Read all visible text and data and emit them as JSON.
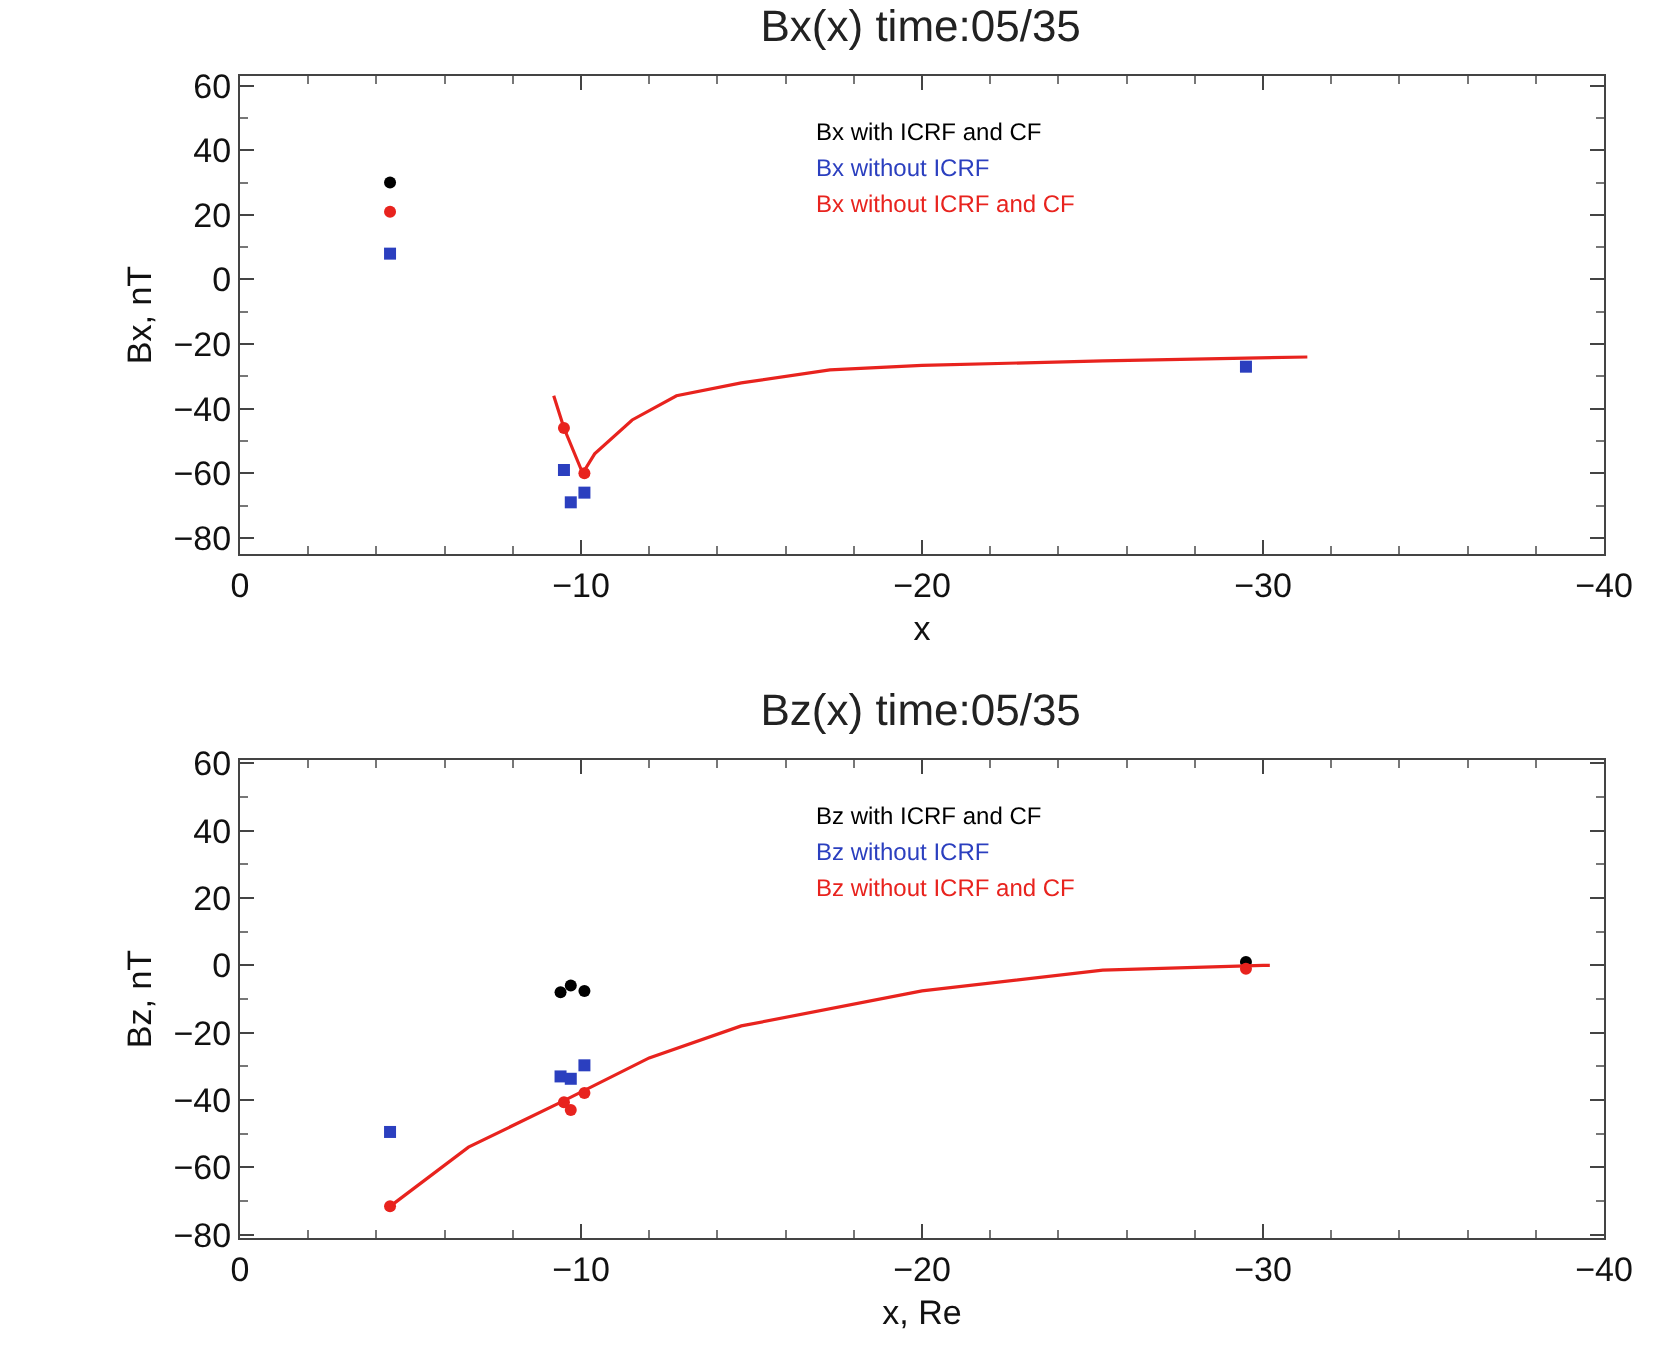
{
  "chart_data": [
    {
      "type": "scatter",
      "title": "Bx(x) time:05/35",
      "xlabel": "x",
      "ylabel": "Bx, nT",
      "xlim": [
        0,
        -40
      ],
      "xticks": [
        0,
        -10,
        -20,
        -30,
        -40
      ],
      "ylim": [
        -85,
        63
      ],
      "yticks": [
        -80,
        -60,
        -40,
        -20,
        0,
        20,
        40,
        60
      ],
      "grid": false,
      "legend": "top",
      "series": [
        {
          "name": "Bx with ICRF and CF",
          "color": "#000000",
          "marker": "circle",
          "x": [
            -4.4
          ],
          "values": [
            30
          ]
        },
        {
          "name": "Bx without ICRF",
          "color": "#2b3fbf",
          "marker": "square",
          "x": [
            -4.4,
            -9.5,
            -9.7,
            -10.1,
            -29.5
          ],
          "values": [
            8,
            -59,
            -69,
            -66,
            -27
          ]
        },
        {
          "color": "#e8231e",
          "marker": "circle",
          "x": [
            -4.4,
            -9.5,
            -10.1
          ],
          "values": [
            21,
            -46,
            -60
          ]
        },
        {
          "name": "Bx without ICRF and CF",
          "type": "line",
          "color": "#e8231e",
          "marker": "none",
          "x": [
            -9.2,
            -9.5,
            -10.05,
            -10.4,
            -11.5,
            -12.8,
            -14.7,
            -17.3,
            -20,
            -25.3,
            -31.3
          ],
          "values": [
            -36,
            -46,
            -60,
            -54,
            -43.5,
            -36,
            -32,
            -28,
            -26.6,
            -25.2,
            -24
          ]
        }
      ]
    },
    {
      "type": "scatter",
      "title": "Bz(x) time:05/35",
      "xlabel": "x, Re",
      "ylabel": "Bz, nT",
      "xlim": [
        0,
        -40
      ],
      "xticks": [
        0,
        -10,
        -20,
        -30,
        -40
      ],
      "ylim": [
        -81,
        61
      ],
      "yticks": [
        -80,
        -60,
        -40,
        -20,
        0,
        20,
        40,
        60
      ],
      "grid": false,
      "legend": "top",
      "series": [
        {
          "name": "Bz with ICRF and CF",
          "color": "#000000",
          "marker": "circle",
          "x": [
            -9.4,
            -9.7,
            -10.1,
            -29.5
          ],
          "values": [
            -8,
            -6,
            -7.6,
            1
          ]
        },
        {
          "name": "Bz without ICRF",
          "color": "#2b3fbf",
          "marker": "square",
          "x": [
            -4.4,
            -9.4,
            -9.7,
            -10.1
          ],
          "values": [
            -49.5,
            -33,
            -33.7,
            -29.7
          ]
        },
        {
          "color": "#e8231e",
          "marker": "circle",
          "x": [
            -4.4,
            -9.5,
            -9.7,
            -10.1,
            -29.5
          ],
          "values": [
            -71.6,
            -40.7,
            -43,
            -37.9,
            -1
          ]
        },
        {
          "name": "Bz without ICRF and CF",
          "type": "line",
          "color": "#e8231e",
          "marker": "none",
          "x": [
            -4.4,
            -6.7,
            -9.4,
            -12,
            -14.7,
            -20,
            -25.3,
            -30,
            -30.2
          ],
          "values": [
            -71.6,
            -54,
            -40.7,
            -27.5,
            -18,
            -7.6,
            -1.4,
            0,
            0
          ]
        }
      ]
    }
  ]
}
